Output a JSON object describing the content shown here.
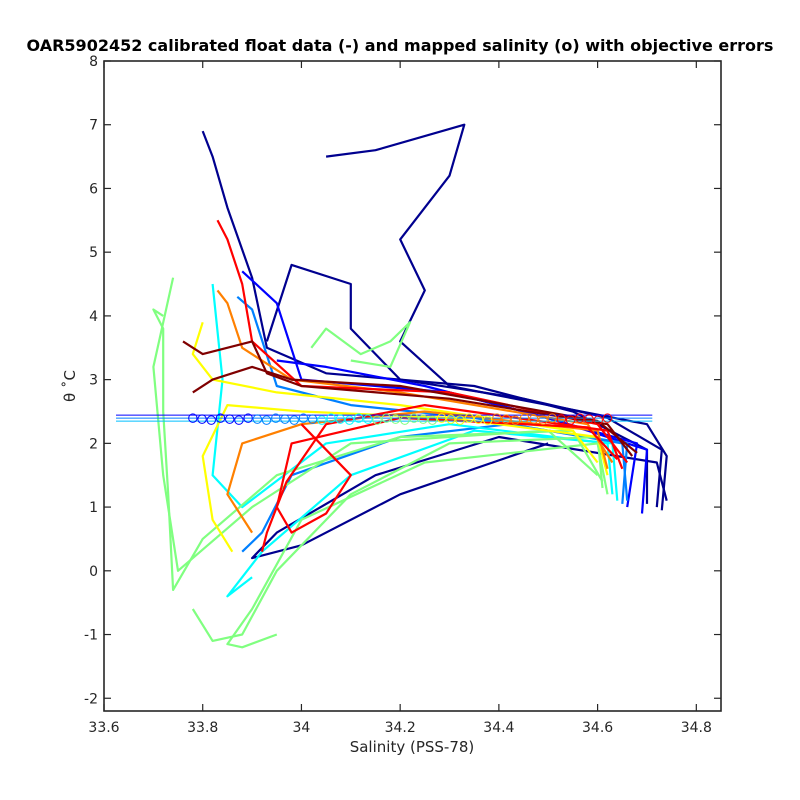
{
  "chart_data": {
    "type": "line",
    "title": "OAR5902452 calibrated float data (-) and mapped salinity (o) with objective errors",
    "xlabel": "Salinity (PSS-78)",
    "ylabel": "θ ˚C",
    "xlim": [
      33.6,
      34.85
    ],
    "ylim": [
      -2.2,
      8
    ],
    "xticks": [
      "33.6",
      "33.8",
      "34",
      "34.2",
      "34.4",
      "34.6",
      "34.8"
    ],
    "yticks": [
      "-2",
      "-1",
      "0",
      "1",
      "2",
      "3",
      "4",
      "5",
      "6",
      "7",
      "8"
    ],
    "grid": false,
    "legend": "none",
    "colormap": [
      "#00008f",
      "#0000ff",
      "#0080ff",
      "#00ffff",
      "#80ff80",
      "#ffff00",
      "#ff8000",
      "#ff0000",
      "#800000"
    ],
    "series": [
      {
        "color": "#00008f",
        "values": [
          [
            34.73,
            0.95
          ],
          [
            34.74,
            1.8
          ],
          [
            34.7,
            2.3
          ],
          [
            34.5,
            2.6
          ],
          [
            34.3,
            2.9
          ],
          [
            34.2,
            3.6
          ],
          [
            34.25,
            4.4
          ],
          [
            34.2,
            5.2
          ],
          [
            34.3,
            6.2
          ],
          [
            34.33,
            7.0
          ],
          [
            34.15,
            6.6
          ],
          [
            34.05,
            6.5
          ]
        ]
      },
      {
        "color": "#00008f",
        "values": [
          [
            34.72,
            1.0
          ],
          [
            34.73,
            1.9
          ],
          [
            34.62,
            2.4
          ],
          [
            34.45,
            2.7
          ],
          [
            34.2,
            3.0
          ],
          [
            34.1,
            3.8
          ],
          [
            34.1,
            4.5
          ],
          [
            33.98,
            4.8
          ],
          [
            33.93,
            3.6
          ]
        ]
      },
      {
        "color": "#00008f",
        "values": [
          [
            34.7,
            1.05
          ],
          [
            34.7,
            1.9
          ],
          [
            34.55,
            2.5
          ],
          [
            34.35,
            2.9
          ],
          [
            34.05,
            3.1
          ],
          [
            33.93,
            3.5
          ],
          [
            33.9,
            4.6
          ],
          [
            33.85,
            5.7
          ],
          [
            33.82,
            6.5
          ],
          [
            33.8,
            6.9
          ]
        ]
      },
      {
        "color": "#00008f",
        "values": [
          [
            34.74,
            1.1
          ],
          [
            34.72,
            1.7
          ],
          [
            34.4,
            2.1
          ],
          [
            34.15,
            1.5
          ],
          [
            33.95,
            0.6
          ],
          [
            33.9,
            0.2
          ],
          [
            34.0,
            0.4
          ],
          [
            34.2,
            1.2
          ],
          [
            34.5,
            2.0
          ]
        ]
      },
      {
        "color": "#0000ff",
        "values": [
          [
            34.69,
            0.9
          ],
          [
            34.7,
            1.9
          ],
          [
            34.5,
            2.4
          ],
          [
            34.25,
            2.9
          ],
          [
            34.05,
            3.2
          ],
          [
            33.95,
            3.3
          ]
        ]
      },
      {
        "color": "#0000ff",
        "values": [
          [
            34.66,
            1.0
          ],
          [
            34.68,
            2.0
          ],
          [
            34.45,
            2.5
          ],
          [
            34.3,
            2.8
          ],
          [
            34.0,
            3.0
          ],
          [
            33.95,
            4.2
          ],
          [
            33.88,
            4.7
          ]
        ]
      },
      {
        "color": "#0080ff",
        "values": [
          [
            34.65,
            1.05
          ],
          [
            34.66,
            2.0
          ],
          [
            34.42,
            2.3
          ],
          [
            34.2,
            2.1
          ],
          [
            33.98,
            1.5
          ],
          [
            33.92,
            0.6
          ],
          [
            33.88,
            0.3
          ]
        ]
      },
      {
        "color": "#0080ff",
        "values": [
          [
            34.66,
            1.1
          ],
          [
            34.65,
            2.0
          ],
          [
            34.35,
            2.4
          ],
          [
            34.1,
            2.6
          ],
          [
            33.95,
            2.9
          ],
          [
            33.9,
            4.1
          ],
          [
            33.87,
            4.3
          ]
        ]
      },
      {
        "color": "#00ffff",
        "values": [
          [
            34.64,
            1.1
          ],
          [
            34.63,
            2.0
          ],
          [
            34.35,
            2.2
          ],
          [
            34.1,
            1.5
          ],
          [
            33.92,
            0.3
          ],
          [
            33.85,
            -0.4
          ],
          [
            33.9,
            -0.1
          ]
        ]
      },
      {
        "color": "#00ffff",
        "values": [
          [
            34.63,
            1.2
          ],
          [
            34.62,
            2.0
          ],
          [
            34.3,
            2.3
          ],
          [
            34.05,
            2.0
          ],
          [
            33.88,
            1.0
          ],
          [
            33.82,
            1.5
          ],
          [
            33.84,
            3.0
          ],
          [
            33.82,
            4.5
          ]
        ]
      },
      {
        "color": "#80ff80",
        "values": [
          [
            34.61,
            1.3
          ],
          [
            34.6,
            2.1
          ],
          [
            34.3,
            2.0
          ],
          [
            34.1,
            1.2
          ],
          [
            33.95,
            0.0
          ],
          [
            33.88,
            -1.0
          ],
          [
            33.82,
            -1.1
          ],
          [
            33.78,
            -0.6
          ]
        ]
      },
      {
        "color": "#80ff80",
        "values": [
          [
            34.62,
            1.2
          ],
          [
            34.6,
            2.0
          ],
          [
            34.25,
            1.7
          ],
          [
            34.0,
            0.8
          ],
          [
            33.9,
            -0.6
          ],
          [
            33.85,
            -1.15
          ],
          [
            33.88,
            -1.2
          ],
          [
            33.95,
            -1.0
          ]
        ]
      },
      {
        "color": "#80ff80",
        "values": [
          [
            34.61,
            1.4
          ],
          [
            34.55,
            2.2
          ],
          [
            34.2,
            2.1
          ],
          [
            33.95,
            1.5
          ],
          [
            33.8,
            0.5
          ],
          [
            33.74,
            -0.3
          ],
          [
            33.73,
            1.2
          ],
          [
            33.72,
            2.5
          ],
          [
            33.72,
            3.8
          ],
          [
            33.7,
            4.1
          ],
          [
            33.72,
            4.0
          ]
        ]
      },
      {
        "color": "#80ff80",
        "values": [
          [
            34.6,
            1.5
          ],
          [
            34.5,
            2.2
          ],
          [
            34.1,
            2.0
          ],
          [
            33.9,
            1.0
          ],
          [
            33.75,
            0.0
          ],
          [
            33.72,
            1.5
          ],
          [
            33.7,
            3.2
          ],
          [
            33.74,
            4.6
          ]
        ]
      },
      {
        "color": "#80ff80",
        "values": [
          [
            34.02,
            3.5
          ],
          [
            34.05,
            3.8
          ],
          [
            34.12,
            3.4
          ],
          [
            34.18,
            3.6
          ],
          [
            34.22,
            3.9
          ],
          [
            34.18,
            3.2
          ],
          [
            34.1,
            3.3
          ]
        ]
      },
      {
        "color": "#ffff00",
        "values": [
          [
            34.62,
            1.5
          ],
          [
            34.6,
            2.1
          ],
          [
            34.3,
            2.4
          ],
          [
            34.0,
            2.5
          ],
          [
            33.85,
            2.6
          ],
          [
            33.8,
            1.8
          ],
          [
            33.82,
            0.8
          ],
          [
            33.86,
            0.3
          ]
        ]
      },
      {
        "color": "#ffff00",
        "values": [
          [
            34.6,
            1.7
          ],
          [
            34.55,
            2.2
          ],
          [
            34.2,
            2.6
          ],
          [
            33.95,
            2.8
          ],
          [
            33.82,
            3.0
          ],
          [
            33.78,
            3.4
          ],
          [
            33.8,
            3.9
          ]
        ]
      },
      {
        "color": "#ff8000",
        "values": [
          [
            34.62,
            1.6
          ],
          [
            34.6,
            2.2
          ],
          [
            34.25,
            2.5
          ],
          [
            34.0,
            2.3
          ],
          [
            33.88,
            2.0
          ],
          [
            33.85,
            1.2
          ],
          [
            33.9,
            0.6
          ]
        ]
      },
      {
        "color": "#ff8000",
        "values": [
          [
            34.63,
            1.7
          ],
          [
            34.58,
            2.3
          ],
          [
            34.2,
            2.8
          ],
          [
            33.98,
            3.0
          ],
          [
            33.88,
            3.5
          ],
          [
            33.85,
            4.2
          ],
          [
            33.83,
            4.4
          ]
        ]
      },
      {
        "color": "#ff0000",
        "values": [
          [
            34.65,
            1.6
          ],
          [
            34.62,
            2.2
          ],
          [
            34.25,
            2.6
          ],
          [
            34.05,
            2.3
          ],
          [
            33.97,
            1.4
          ],
          [
            33.93,
            0.6
          ],
          [
            33.92,
            0.3
          ]
        ]
      },
      {
        "color": "#ff0000",
        "values": [
          [
            34.66,
            1.7
          ],
          [
            34.6,
            2.3
          ],
          [
            34.3,
            2.8
          ],
          [
            34.0,
            2.9
          ],
          [
            33.9,
            3.6
          ],
          [
            33.88,
            4.5
          ],
          [
            33.85,
            5.2
          ],
          [
            33.83,
            5.5
          ]
        ]
      },
      {
        "color": "#ff0000",
        "values": [
          [
            34.64,
            1.75
          ],
          [
            34.58,
            2.25
          ],
          [
            34.2,
            2.4
          ],
          [
            33.98,
            2.0
          ],
          [
            33.95,
            1.0
          ],
          [
            33.98,
            0.6
          ],
          [
            34.05,
            0.9
          ],
          [
            34.1,
            1.5
          ],
          [
            34.0,
            2.3
          ]
        ]
      },
      {
        "color": "#800000",
        "values": [
          [
            34.67,
            1.8
          ],
          [
            34.62,
            2.3
          ],
          [
            34.3,
            2.7
          ],
          [
            34.0,
            2.9
          ],
          [
            33.93,
            3.1
          ],
          [
            33.9,
            3.6
          ],
          [
            33.8,
            3.4
          ],
          [
            33.76,
            3.6
          ]
        ]
      },
      {
        "color": "#800000",
        "values": [
          [
            34.68,
            1.85
          ],
          [
            34.6,
            2.35
          ],
          [
            34.2,
            2.9
          ],
          [
            33.98,
            3.0
          ],
          [
            33.9,
            3.2
          ],
          [
            33.82,
            3.0
          ],
          [
            33.78,
            2.8
          ]
        ]
      }
    ],
    "mapped_salinity": {
      "theta": 2.38,
      "salinity_range": [
        33.6,
        34.65
      ],
      "colors": [
        "#0000ff",
        "#0080ff",
        "#00ffff",
        "#80ff80",
        "#ffff00",
        "#ff8000",
        "#ff0000"
      ]
    }
  }
}
